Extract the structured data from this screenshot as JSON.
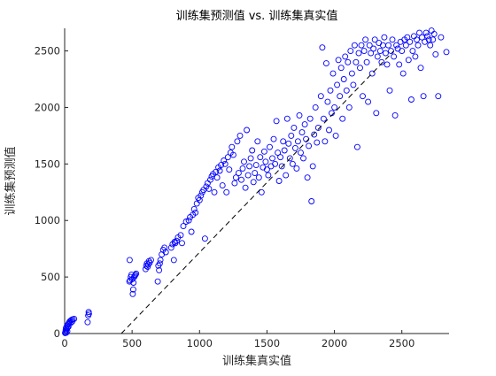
{
  "chart_data": {
    "type": "scatter",
    "title": "训练集预测值 vs. 训练集真实值",
    "xlabel": "训练集真实值",
    "ylabel": "训练集预测值",
    "xlim": [
      0,
      2850
    ],
    "ylim": [
      0,
      2700
    ],
    "xticks": [
      0,
      500,
      1000,
      1500,
      2000,
      2500
    ],
    "yticks": [
      0,
      500,
      1000,
      1500,
      2000,
      2500
    ],
    "grid": false,
    "marker": "open-circle",
    "colors": {
      "points": "#0000ff",
      "reference_line": "#000000",
      "axes": "#262626"
    },
    "reference_line": {
      "style": "dashed",
      "points": [
        [
          420,
          0
        ],
        [
          2440,
          2500
        ]
      ]
    },
    "series": [
      {
        "points": [
          [
            3,
            5
          ],
          [
            5,
            12
          ],
          [
            8,
            30
          ],
          [
            10,
            50
          ],
          [
            12,
            8
          ],
          [
            15,
            40
          ],
          [
            18,
            70
          ],
          [
            20,
            20
          ],
          [
            22,
            55
          ],
          [
            25,
            80
          ],
          [
            28,
            60
          ],
          [
            30,
            90
          ],
          [
            35,
            100
          ],
          [
            40,
            110
          ],
          [
            45,
            95
          ],
          [
            50,
            120
          ],
          [
            55,
            105
          ],
          [
            60,
            125
          ],
          [
            70,
            130
          ],
          [
            170,
            100
          ],
          [
            175,
            160
          ],
          [
            178,
            190
          ],
          [
            180,
            175
          ],
          [
            480,
            460
          ],
          [
            482,
            650
          ],
          [
            485,
            470
          ],
          [
            490,
            500
          ],
          [
            495,
            520
          ],
          [
            500,
            480
          ],
          [
            505,
            350
          ],
          [
            508,
            390
          ],
          [
            510,
            450
          ],
          [
            515,
            500
          ],
          [
            520,
            510
          ],
          [
            525,
            520
          ],
          [
            530,
            530
          ],
          [
            600,
            570
          ],
          [
            605,
            600
          ],
          [
            610,
            620
          ],
          [
            615,
            590
          ],
          [
            620,
            610
          ],
          [
            625,
            640
          ],
          [
            630,
            625
          ],
          [
            640,
            650
          ],
          [
            690,
            460
          ],
          [
            695,
            600
          ],
          [
            700,
            560
          ],
          [
            705,
            620
          ],
          [
            710,
            650
          ],
          [
            720,
            700
          ],
          [
            730,
            740
          ],
          [
            740,
            760
          ],
          [
            750,
            720
          ],
          [
            790,
            760
          ],
          [
            800,
            790
          ],
          [
            810,
            650
          ],
          [
            815,
            810
          ],
          [
            820,
            800
          ],
          [
            830,
            820
          ],
          [
            840,
            850
          ],
          [
            860,
            870
          ],
          [
            870,
            800
          ],
          [
            880,
            950
          ],
          [
            900,
            990
          ],
          [
            920,
            1000
          ],
          [
            930,
            1030
          ],
          [
            940,
            900
          ],
          [
            950,
            1050
          ],
          [
            960,
            1100
          ],
          [
            970,
            1070
          ],
          [
            980,
            1150
          ],
          [
            990,
            1200
          ],
          [
            1000,
            1180
          ],
          [
            1010,
            1220
          ],
          [
            1020,
            1250
          ],
          [
            1030,
            1270
          ],
          [
            1040,
            840
          ],
          [
            1050,
            1300
          ],
          [
            1060,
            1330
          ],
          [
            1070,
            1280
          ],
          [
            1080,
            1360
          ],
          [
            1090,
            1390
          ],
          [
            1100,
            1410
          ],
          [
            1110,
            1250
          ],
          [
            1120,
            1430
          ],
          [
            1130,
            1380
          ],
          [
            1140,
            1470
          ],
          [
            1150,
            1440
          ],
          [
            1160,
            1490
          ],
          [
            1170,
            1310
          ],
          [
            1180,
            1530
          ],
          [
            1190,
            1500
          ],
          [
            1200,
            1250
          ],
          [
            1210,
            1560
          ],
          [
            1220,
            1450
          ],
          [
            1230,
            1600
          ],
          [
            1240,
            1650
          ],
          [
            1250,
            1580
          ],
          [
            1260,
            1330
          ],
          [
            1270,
            1380
          ],
          [
            1280,
            1700
          ],
          [
            1290,
            1420
          ],
          [
            1300,
            1750
          ],
          [
            1310,
            1360
          ],
          [
            1320,
            1460
          ],
          [
            1330,
            1520
          ],
          [
            1340,
            1290
          ],
          [
            1350,
            1800
          ],
          [
            1360,
            1400
          ],
          [
            1370,
            1480
          ],
          [
            1380,
            1550
          ],
          [
            1390,
            1620
          ],
          [
            1400,
            1340
          ],
          [
            1410,
            1420
          ],
          [
            1420,
            1490
          ],
          [
            1430,
            1700
          ],
          [
            1440,
            1380
          ],
          [
            1450,
            1560
          ],
          [
            1460,
            1250
          ],
          [
            1470,
            1470
          ],
          [
            1480,
            1610
          ],
          [
            1490,
            1520
          ],
          [
            1500,
            1450
          ],
          [
            1510,
            1400
          ],
          [
            1520,
            1650
          ],
          [
            1530,
            1480
          ],
          [
            1540,
            1550
          ],
          [
            1550,
            1720
          ],
          [
            1560,
            1500
          ],
          [
            1570,
            1880
          ],
          [
            1580,
            1600
          ],
          [
            1590,
            1350
          ],
          [
            1600,
            1560
          ],
          [
            1610,
            1480
          ],
          [
            1620,
            1700
          ],
          [
            1630,
            1620
          ],
          [
            1640,
            1400
          ],
          [
            1650,
            1900
          ],
          [
            1660,
            1680
          ],
          [
            1670,
            1550
          ],
          [
            1680,
            1750
          ],
          [
            1690,
            1500
          ],
          [
            1700,
            1820
          ],
          [
            1710,
            1640
          ],
          [
            1720,
            1460
          ],
          [
            1730,
            1700
          ],
          [
            1740,
            1930
          ],
          [
            1750,
            1600
          ],
          [
            1760,
            1780
          ],
          [
            1770,
            1550
          ],
          [
            1780,
            1850
          ],
          [
            1790,
            1720
          ],
          [
            1800,
            1380
          ],
          [
            1810,
            1660
          ],
          [
            1820,
            1900
          ],
          [
            1830,
            1170
          ],
          [
            1840,
            1480
          ],
          [
            1850,
            1760
          ],
          [
            1860,
            2000
          ],
          [
            1870,
            1690
          ],
          [
            1880,
            1820
          ],
          [
            1900,
            2100
          ],
          [
            1910,
            2530
          ],
          [
            1920,
            1900
          ],
          [
            1930,
            1700
          ],
          [
            1940,
            2390
          ],
          [
            1950,
            2050
          ],
          [
            1960,
            1800
          ],
          [
            1970,
            2150
          ],
          [
            1980,
            1950
          ],
          [
            1990,
            2300
          ],
          [
            2000,
            2000
          ],
          [
            2010,
            1750
          ],
          [
            2020,
            2200
          ],
          [
            2030,
            2420
          ],
          [
            2040,
            2100
          ],
          [
            2050,
            2350
          ],
          [
            2060,
            1900
          ],
          [
            2070,
            2250
          ],
          [
            2080,
            2450
          ],
          [
            2090,
            2150
          ],
          [
            2100,
            2400
          ],
          [
            2110,
            2000
          ],
          [
            2120,
            2500
          ],
          [
            2130,
            2300
          ],
          [
            2140,
            2200
          ],
          [
            2150,
            2550
          ],
          [
            2160,
            2400
          ],
          [
            2170,
            1650
          ],
          [
            2180,
            2480
          ],
          [
            2190,
            2350
          ],
          [
            2200,
            2550
          ],
          [
            2210,
            2100
          ],
          [
            2220,
            2500
          ],
          [
            2230,
            2600
          ],
          [
            2240,
            2400
          ],
          [
            2250,
            2050
          ],
          [
            2260,
            2550
          ],
          [
            2270,
            2480
          ],
          [
            2280,
            2300
          ],
          [
            2290,
            2520
          ],
          [
            2300,
            2600
          ],
          [
            2310,
            1950
          ],
          [
            2320,
            2450
          ],
          [
            2330,
            2570
          ],
          [
            2340,
            2500
          ],
          [
            2350,
            2400
          ],
          [
            2360,
            2550
          ],
          [
            2370,
            2620
          ],
          [
            2380,
            2480
          ],
          [
            2390,
            2380
          ],
          [
            2400,
            2550
          ],
          [
            2410,
            2150
          ],
          [
            2420,
            2500
          ],
          [
            2430,
            2600
          ],
          [
            2440,
            2450
          ],
          [
            2450,
            1930
          ],
          [
            2460,
            2550
          ],
          [
            2470,
            2520
          ],
          [
            2480,
            2380
          ],
          [
            2490,
            2580
          ],
          [
            2500,
            2500
          ],
          [
            2510,
            2300
          ],
          [
            2520,
            2600
          ],
          [
            2530,
            2550
          ],
          [
            2540,
            2620
          ],
          [
            2550,
            2420
          ],
          [
            2560,
            2580
          ],
          [
            2570,
            2070
          ],
          [
            2580,
            2500
          ],
          [
            2590,
            2630
          ],
          [
            2600,
            2450
          ],
          [
            2610,
            2600
          ],
          [
            2620,
            2550
          ],
          [
            2630,
            2660
          ],
          [
            2640,
            2350
          ],
          [
            2650,
            2620
          ],
          [
            2660,
            2100
          ],
          [
            2670,
            2580
          ],
          [
            2680,
            2660
          ],
          [
            2690,
            2630
          ],
          [
            2700,
            2600
          ],
          [
            2710,
            2550
          ],
          [
            2720,
            2680
          ],
          [
            2730,
            2600
          ],
          [
            2740,
            2650
          ],
          [
            2750,
            2470
          ],
          [
            2770,
            2100
          ],
          [
            2790,
            2620
          ],
          [
            2830,
            2490
          ]
        ]
      }
    ]
  }
}
